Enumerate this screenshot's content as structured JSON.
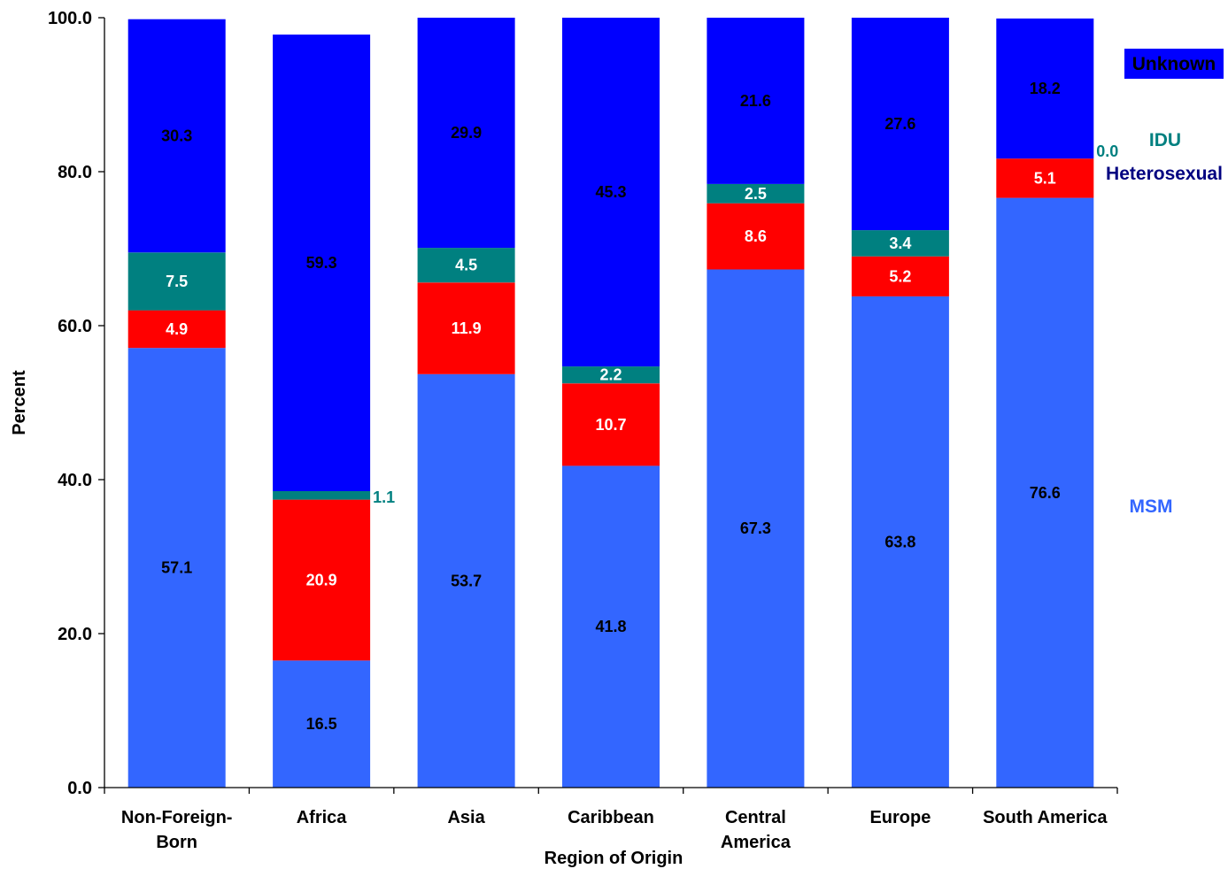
{
  "chart_data": {
    "type": "bar",
    "stacked": true,
    "categories": [
      [
        "Non-Foreign-",
        "Born"
      ],
      [
        "Africa"
      ],
      [
        "Asia"
      ],
      [
        "Caribbean"
      ],
      [
        "Central",
        "America"
      ],
      [
        "Europe"
      ],
      [
        "South America"
      ]
    ],
    "series": [
      {
        "name": "MSM",
        "color": "#3366ff",
        "label_color": "#000000",
        "values": [
          57.1,
          16.5,
          53.7,
          41.8,
          67.3,
          63.8,
          76.6
        ]
      },
      {
        "name": "Heterosexual",
        "color": "#ff0000",
        "label_color": "#ffffff",
        "values": [
          4.9,
          20.9,
          11.9,
          10.7,
          8.6,
          5.2,
          5.1
        ]
      },
      {
        "name": "IDU",
        "color": "#008080",
        "label_color": "#ffffff",
        "values": [
          7.5,
          1.1,
          4.5,
          2.2,
          2.5,
          3.4,
          0.0
        ]
      },
      {
        "name": "Unknown",
        "color": "#0000ff",
        "label_color": "#000000",
        "values": [
          30.3,
          59.3,
          29.9,
          45.3,
          21.6,
          27.6,
          18.2
        ]
      }
    ],
    "outside_labels": [
      {
        "series": 2,
        "category": 1,
        "text": "1.1",
        "color": "#008080"
      },
      {
        "series": 2,
        "category": 6,
        "text": "0.0",
        "color": "#008080"
      }
    ],
    "legend": [
      {
        "text": "Unknown",
        "color": "#000000",
        "box": "#0000ff"
      },
      {
        "text": "IDU",
        "color": "#008080"
      },
      {
        "text": "Heterosexual",
        "color": "#000080"
      },
      {
        "text": "MSM",
        "color": "#3366ff"
      }
    ],
    "legend_position": "right",
    "xlabel": "Region of Origin",
    "ylabel": "Percent",
    "ylim": [
      0,
      100
    ],
    "yticks": [
      "0.0",
      "20.0",
      "40.0",
      "60.0",
      "80.0",
      "100.0"
    ],
    "grid": false
  }
}
